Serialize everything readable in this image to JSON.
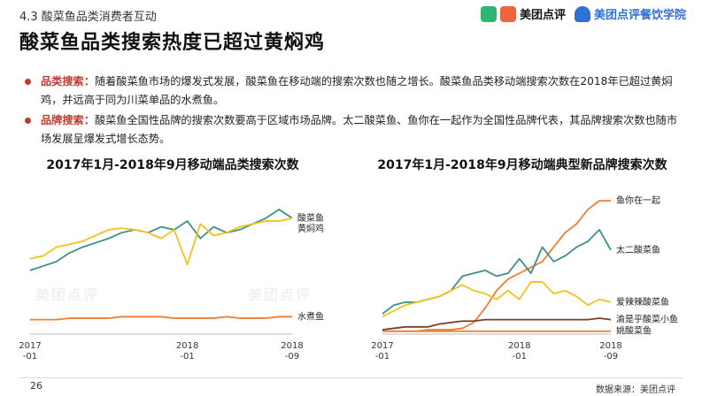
{
  "header": {
    "section": "4.3 酸菜鱼品类消费者互动",
    "title": "酸菜鱼品类搜索热度已超过黄焖鸡",
    "logo1": "美团点评",
    "logo2": "美团点评餐饮学院"
  },
  "bullets": [
    {
      "keyword": "品类搜索：",
      "text": "随着酸菜鱼市场的爆发式发展，酸菜鱼在移动端的搜索次数也随之增长。酸菜鱼品类移动端搜索次数在2018年已超过黄焖鸡，并远高于同为川菜单品的水煮鱼。"
    },
    {
      "keyword": "品牌搜索：",
      "text": "酸菜鱼全国性品牌的搜索次数要高于区域市场品牌。太二酸菜鱼、鱼你在一起作为全国性品牌代表，其品牌搜索次数也随市场发展呈爆发式增长态势。"
    }
  ],
  "watermark": "美团点评",
  "footer": {
    "page": "26",
    "source": "数据来源：美团点评"
  },
  "colors": {
    "teal": "#3d8f8c",
    "yellow": "#f3c219",
    "orange": "#f07c2e",
    "brown": "#7a3d2e",
    "red": "#c0392b"
  },
  "chart_data": [
    {
      "type": "line",
      "title": "2017年1月-2018年9月移动端品类搜索次数",
      "x_ticks": [
        [
          "2017",
          "-01"
        ],
        [
          "2018",
          "-01"
        ],
        [
          "2018",
          "-09"
        ]
      ],
      "x": [
        1,
        2,
        3,
        4,
        5,
        6,
        7,
        8,
        9,
        10,
        11,
        12,
        13,
        14,
        15,
        16,
        17,
        18,
        19,
        20,
        21
      ],
      "ylim": [
        0,
        100
      ],
      "series": [
        {
          "name": "酸菜鱼",
          "color": "#3d8f8c",
          "values": [
            44,
            47,
            50,
            56,
            60,
            63,
            66,
            70,
            72,
            70,
            74,
            72,
            78,
            66,
            74,
            70,
            72,
            76,
            80,
            86,
            80
          ]
        },
        {
          "name": "黄焖鸡",
          "color": "#f3c219",
          "values": [
            52,
            54,
            60,
            62,
            64,
            68,
            72,
            73,
            72,
            70,
            66,
            72,
            48,
            76,
            68,
            70,
            74,
            76,
            78,
            78,
            80
          ]
        },
        {
          "name": "水煮鱼",
          "color": "#f07c2e",
          "values": [
            10,
            10,
            10,
            11,
            11,
            11,
            11,
            12,
            12,
            12,
            12,
            11,
            11,
            11,
            11,
            12,
            11,
            11,
            11,
            12,
            12
          ]
        }
      ]
    },
    {
      "type": "line",
      "title": "2017年1月-2018年9月移动端典型新品牌搜索次数",
      "x_ticks": [
        [
          "2017",
          "-01"
        ],
        [
          "2018",
          "-01"
        ],
        [
          "2018",
          "-09"
        ]
      ],
      "x": [
        1,
        2,
        3,
        4,
        5,
        6,
        7,
        8,
        9,
        10,
        11,
        12,
        13,
        14,
        15,
        16,
        17,
        18,
        19,
        20,
        21
      ],
      "ylim": [
        0,
        100
      ],
      "series": [
        {
          "name": "鱼你在一起",
          "color": "#f07c2e",
          "values": [
            2,
            2,
            2,
            2,
            3,
            3,
            3,
            4,
            8,
            18,
            30,
            38,
            42,
            46,
            50,
            60,
            70,
            76,
            86,
            92,
            92
          ]
        },
        {
          "name": "太二酸菜鱼",
          "color": "#3d8f8c",
          "values": [
            14,
            20,
            22,
            22,
            24,
            26,
            30,
            40,
            42,
            44,
            40,
            42,
            52,
            42,
            60,
            50,
            54,
            60,
            64,
            72,
            58
          ]
        },
        {
          "name": "爱辣辣酸菜鱼",
          "color": "#f3c219",
          "values": [
            12,
            16,
            20,
            22,
            24,
            26,
            30,
            34,
            30,
            28,
            24,
            30,
            24,
            36,
            36,
            28,
            30,
            26,
            20,
            24,
            22
          ]
        },
        {
          "name": "渝是乎酸菜小鱼",
          "color": "#7a3d2e",
          "values": [
            3,
            4,
            5,
            5,
            5,
            7,
            8,
            9,
            9,
            10,
            10,
            10,
            10,
            10,
            10,
            10,
            10,
            10,
            10,
            11,
            10
          ]
        },
        {
          "name": "姚酸菜鱼",
          "color": "#f07c2e",
          "values": [
            2,
            2,
            2,
            2,
            2,
            2,
            2,
            2,
            2,
            2,
            2,
            2,
            2,
            2,
            2,
            2,
            2,
            2,
            2,
            2,
            2
          ]
        }
      ]
    }
  ]
}
